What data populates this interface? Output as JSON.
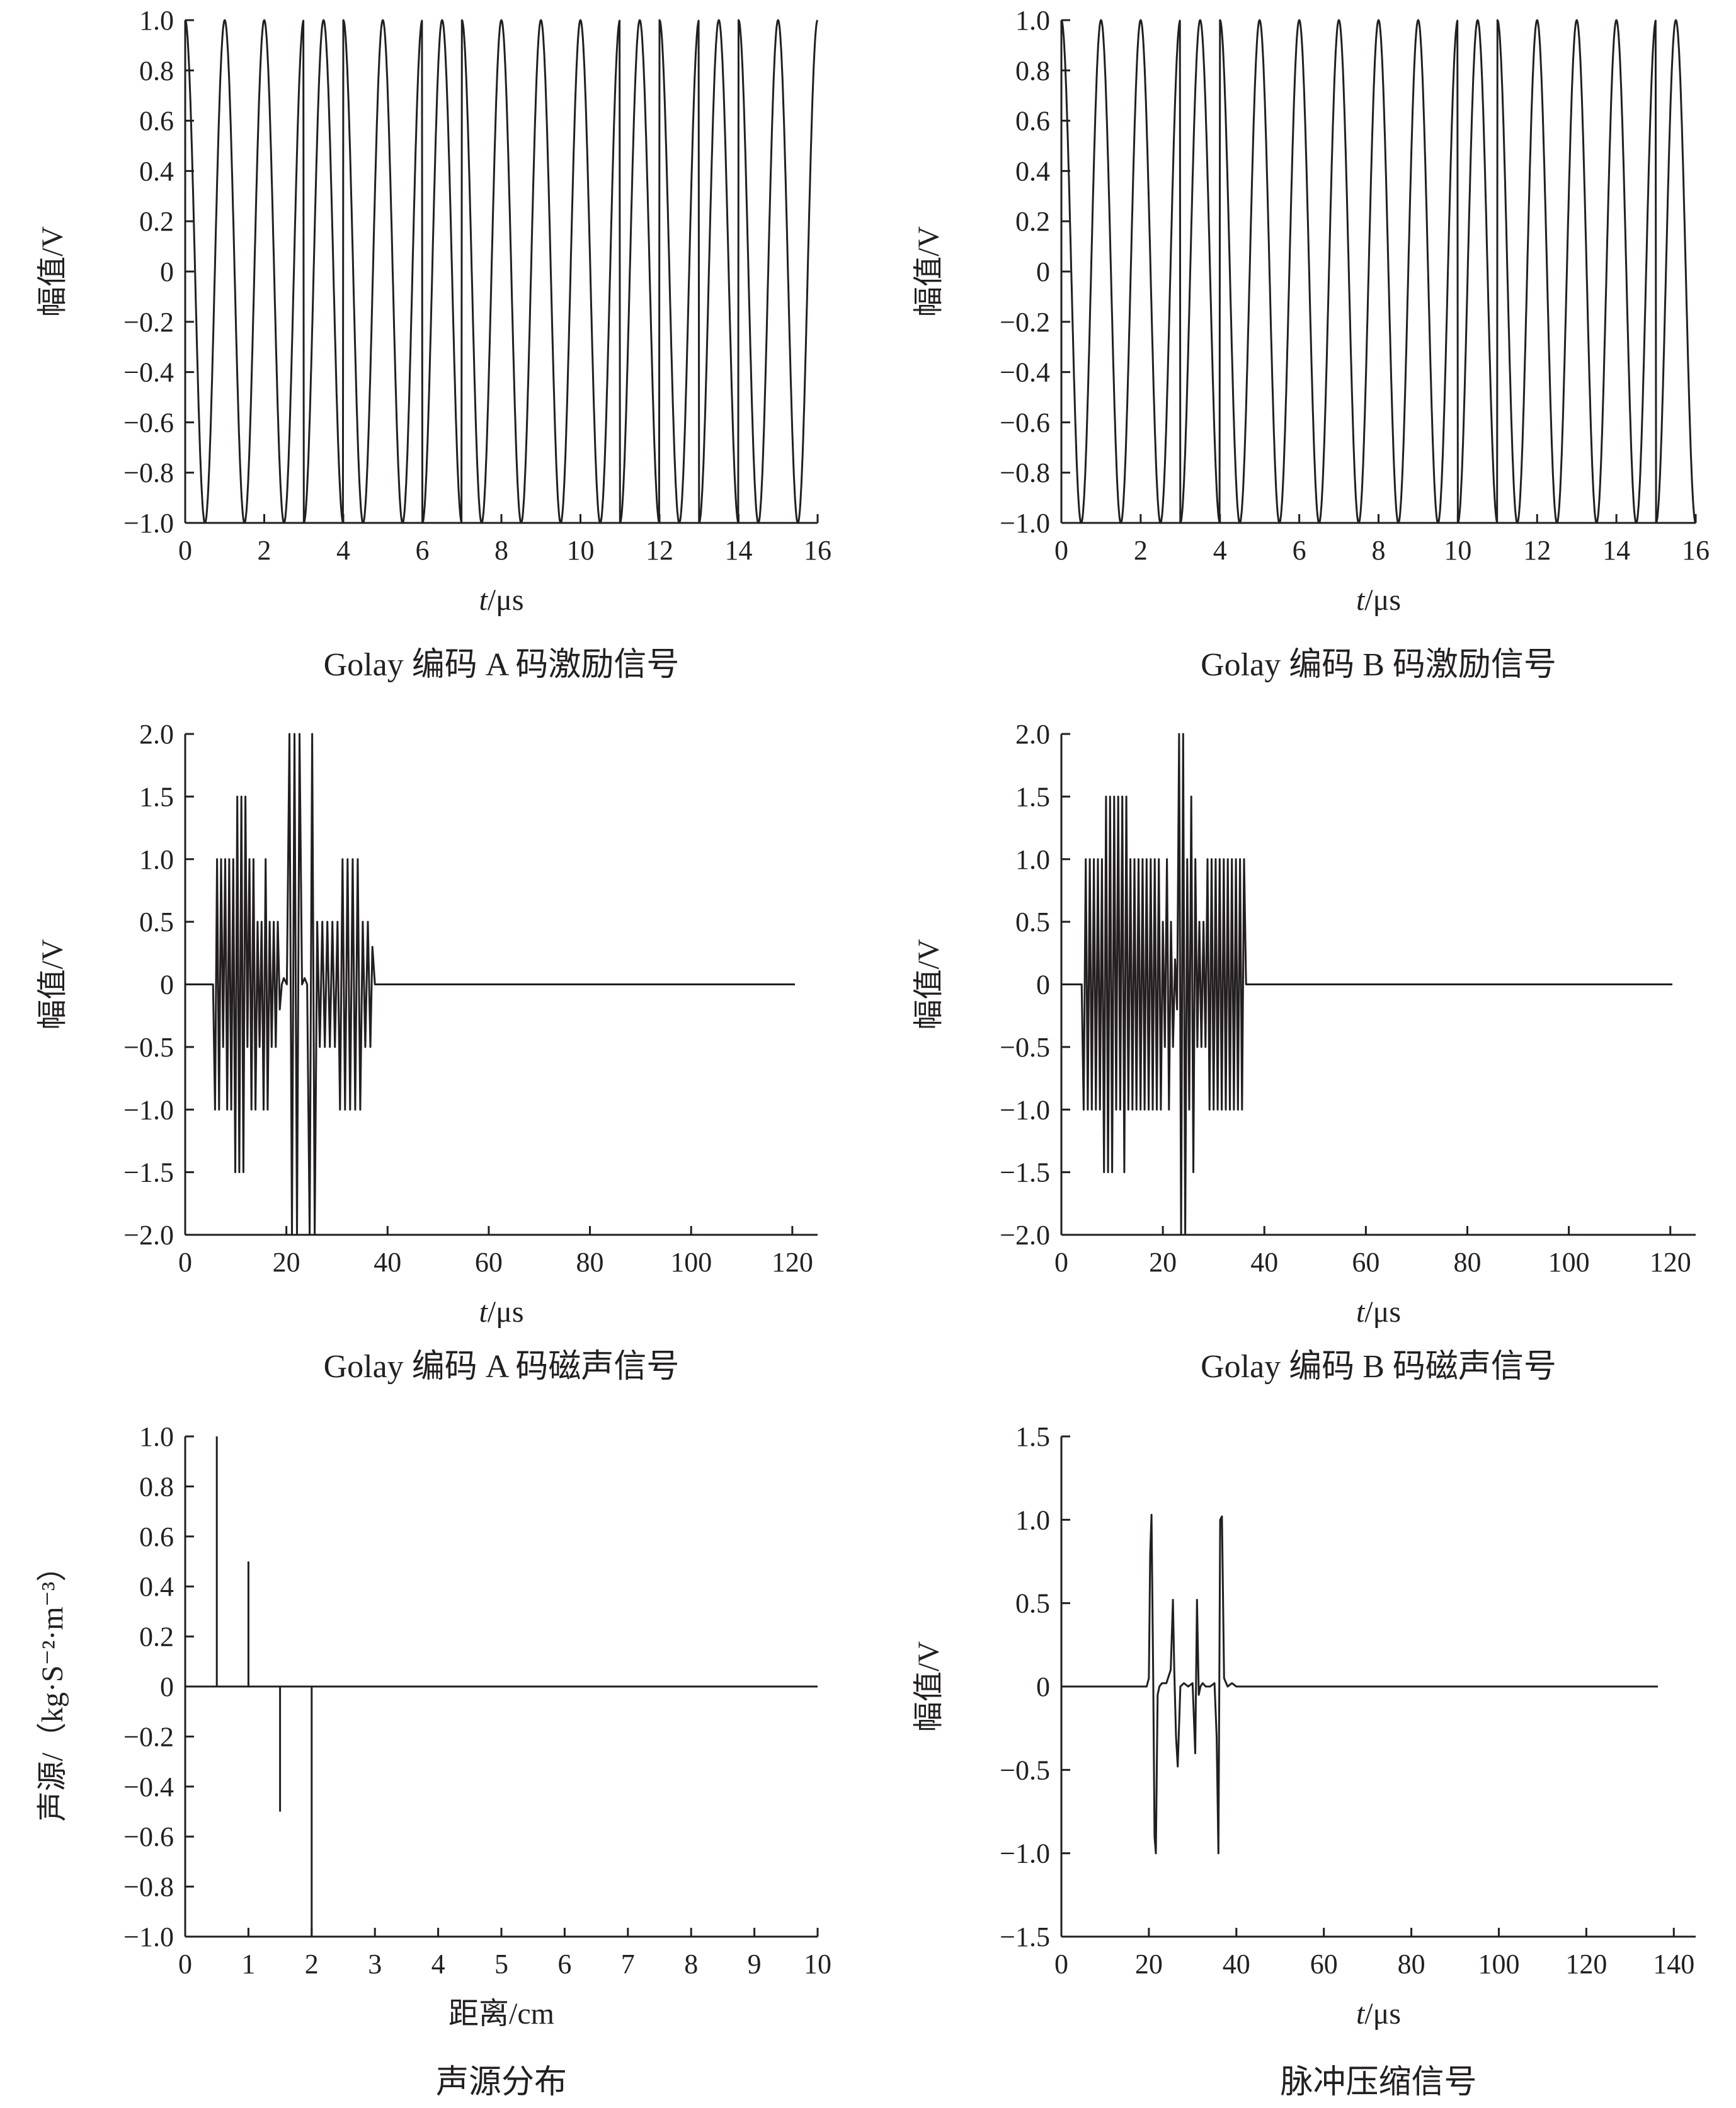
{
  "figure": {
    "colors": {
      "ink": "#231f20",
      "background": "#ffffff"
    }
  },
  "chart_data": [
    {
      "id": "golay-a-excitation",
      "type": "line",
      "caption": "Golay 编码 A 码激励信号",
      "xlabel": "t/μs",
      "ylabel": "幅值/V",
      "xlim": [
        0,
        16
      ],
      "ylim": [
        -1.0,
        1.0
      ],
      "xticks": [
        0,
        2,
        4,
        6,
        8,
        10,
        12,
        14,
        16
      ],
      "yticks": [
        1.0,
        0.8,
        0.6,
        0.4,
        0.2,
        0,
        -0.2,
        -0.4,
        -0.6,
        -0.8,
        -1.0
      ],
      "ytick_labels": [
        "1.0",
        "0.8",
        "0.6",
        "0.4",
        "0.2",
        "0",
        "−0.2",
        "−0.4",
        "−0.6",
        "−0.8",
        "−1.0"
      ],
      "carrier_period_us": 1.0,
      "code_signs": [
        1,
        1,
        1,
        -1,
        1,
        1,
        -1,
        1,
        1,
        1,
        1,
        -1,
        1,
        -1,
        1,
        1
      ],
      "grid": false
    },
    {
      "id": "golay-b-excitation",
      "type": "line",
      "caption": "Golay 编码 B 码激励信号",
      "xlabel": "t/μs",
      "ylabel": "幅值/V",
      "xlim": [
        0,
        16
      ],
      "ylim": [
        -1.0,
        1.0
      ],
      "xticks": [
        0,
        2,
        4,
        6,
        8,
        10,
        12,
        14,
        16
      ],
      "yticks": [
        1.0,
        0.8,
        0.6,
        0.4,
        0.2,
        0,
        -0.2,
        -0.4,
        -0.6,
        -0.8,
        -1.0
      ],
      "ytick_labels": [
        "1.0",
        "0.8",
        "0.6",
        "0.4",
        "0.2",
        "0",
        "−0.2",
        "−0.4",
        "−0.6",
        "−0.8",
        "−1.0"
      ],
      "carrier_period_us": 1.0,
      "code_signs": [
        1,
        1,
        1,
        -1,
        1,
        1,
        1,
        1,
        1,
        1,
        -1,
        1,
        1,
        1,
        1,
        -1
      ],
      "grid": false
    },
    {
      "id": "golay-a-mag-acoustic",
      "type": "line",
      "caption": "Golay 编码 A 码磁声信号",
      "xlabel": "t/μs",
      "ylabel": "幅值/V",
      "xlim": [
        0,
        125
      ],
      "ylim": [
        -2.0,
        2.0
      ],
      "xticks": [
        0,
        20,
        40,
        60,
        80,
        100,
        120
      ],
      "yticks": [
        2.0,
        1.5,
        1.0,
        0.5,
        0,
        -0.5,
        -1.0,
        -1.5,
        -2.0
      ],
      "ytick_labels": [
        "2.0",
        "1.5",
        "1.0",
        "0.5",
        "0",
        "−0.5",
        "−1.0",
        "−1.5",
        "−2.0"
      ],
      "x": [
        0,
        5.5,
        5.9,
        6.3,
        6.7,
        7.1,
        7.5,
        7.9,
        8.3,
        8.7,
        9.1,
        9.5,
        9.9,
        10.3,
        10.7,
        11.1,
        11.5,
        11.9,
        12.3,
        12.7,
        13.1,
        13.5,
        13.9,
        14.3,
        14.7,
        15.1,
        15.5,
        15.9,
        16.3,
        16.7,
        17.1,
        17.5,
        17.9,
        18.3,
        18.7,
        19.1,
        19.5,
        20.1,
        20.6,
        21.1,
        21.6,
        22.1,
        22.6,
        23.1,
        23.6,
        24.1,
        24.6,
        25.1,
        25.6,
        26.1,
        26.6,
        27.1,
        27.6,
        28.1,
        28.6,
        29.1,
        29.6,
        30.1,
        30.6,
        31.1,
        31.6,
        32.1,
        32.6,
        33.1,
        33.6,
        34.1,
        34.6,
        35.1,
        35.6,
        36.1,
        36.6,
        37.0,
        37.5,
        60,
        118
      ],
      "y": [
        0,
        0,
        -1.0,
        1.0,
        -1.0,
        1.0,
        -0.5,
        1.0,
        -1.0,
        1.0,
        -1.0,
        1.0,
        -1.5,
        1.5,
        -1.5,
        1.5,
        -1.5,
        1.5,
        -0.5,
        1.0,
        -1.0,
        1.0,
        -1.0,
        0.5,
        -0.5,
        0.5,
        -1.0,
        1.0,
        -1.0,
        0.5,
        -0.5,
        0.5,
        -0.5,
        0.5,
        -0.2,
        0,
        0.05,
        0,
        2.0,
        -2.0,
        2.0,
        -2.0,
        2.0,
        0,
        0.05,
        0,
        -2.0,
        2.0,
        -2.0,
        0.5,
        -0.5,
        0.5,
        -0.5,
        0.5,
        -0.5,
        0.5,
        -0.5,
        0.5,
        -1.0,
        1.0,
        -1.0,
        1.0,
        -1.0,
        1.0,
        -1.0,
        1.0,
        -1.0,
        0.5,
        -0.5,
        0.5,
        -0.5,
        0.3,
        0,
        0,
        0
      ],
      "grid": false
    },
    {
      "id": "golay-b-mag-acoustic",
      "type": "line",
      "caption": "Golay 编码 B 码磁声信号",
      "xlabel": "t/μs",
      "ylabel": "幅值/V",
      "xlim": [
        0,
        125
      ],
      "ylim": [
        -2.0,
        2.0
      ],
      "xticks": [
        0,
        20,
        40,
        60,
        80,
        100,
        120
      ],
      "yticks": [
        2.0,
        1.5,
        1.0,
        0.5,
        0,
        -0.5,
        -1.0,
        -1.5,
        -2.0
      ],
      "ytick_labels": [
        "2.0",
        "1.5",
        "1.0",
        "0.5",
        "0",
        "−0.5",
        "−1.0",
        "−1.5",
        "−2.0"
      ],
      "x": [
        0,
        4.0,
        4.4,
        4.8,
        5.2,
        5.6,
        6.0,
        6.4,
        6.8,
        7.2,
        7.6,
        8.0,
        8.4,
        8.8,
        9.2,
        9.6,
        10.0,
        10.4,
        10.8,
        11.2,
        11.6,
        12.0,
        12.4,
        12.8,
        13.2,
        13.6,
        14.0,
        14.4,
        14.8,
        15.2,
        15.6,
        16.0,
        16.4,
        16.8,
        17.2,
        17.6,
        18.0,
        18.4,
        18.8,
        19.2,
        19.6,
        20.0,
        20.4,
        20.8,
        21.2,
        21.6,
        22.0,
        22.4,
        22.8,
        23.2,
        23.6,
        24.0,
        24.4,
        24.8,
        25.2,
        25.6,
        26.0,
        26.4,
        26.8,
        27.2,
        27.6,
        28.0,
        28.4,
        28.8,
        29.2,
        29.6,
        30.0,
        30.4,
        30.8,
        31.2,
        31.6,
        32.0,
        32.4,
        32.8,
        33.2,
        33.6,
        34.0,
        34.4,
        34.8,
        35.2,
        35.6,
        36.0,
        36.4,
        60,
        118
      ],
      "y": [
        0,
        0,
        -1.0,
        1.0,
        -1.0,
        1.0,
        -1.0,
        1.0,
        -1.0,
        1.0,
        -1.0,
        1.0,
        -1.5,
        1.5,
        -1.5,
        1.5,
        -1.5,
        1.5,
        -1.0,
        1.5,
        -1.0,
        1.5,
        -1.5,
        1.5,
        -1.0,
        1.0,
        -1.0,
        1.0,
        -1.0,
        1.0,
        -1.0,
        1.0,
        -1.0,
        1.0,
        -1.0,
        1.0,
        -1.0,
        1.0,
        -1.0,
        1.0,
        -1.0,
        0.5,
        -0.5,
        1.0,
        -1.0,
        0.5,
        -0.5,
        0.2,
        -0.2,
        2.0,
        -2.0,
        2.0,
        -2.0,
        1.0,
        -1.0,
        1.5,
        -1.5,
        1.0,
        -0.5,
        0.5,
        -0.5,
        0.5,
        -0.5,
        1.0,
        -1.0,
        1.0,
        -1.0,
        1.0,
        -1.0,
        1.0,
        -1.0,
        1.0,
        -1.0,
        1.0,
        -1.0,
        1.0,
        -1.0,
        1.0,
        -1.0,
        1.0,
        -1.0,
        1.0,
        0,
        0,
        0
      ],
      "grid": false
    },
    {
      "id": "sound-source-distribution",
      "type": "stem",
      "caption": "声源分布",
      "xlabel": "距离/cm",
      "ylabel": "声源/（kg·S⁻²·m⁻³）",
      "xlim": [
        0,
        10
      ],
      "ylim": [
        -1.0,
        1.0
      ],
      "xticks": [
        0,
        1,
        2,
        3,
        4,
        5,
        6,
        7,
        8,
        9,
        10
      ],
      "yticks": [
        1.0,
        0.8,
        0.6,
        0.4,
        0.2,
        0,
        -0.2,
        -0.4,
        -0.6,
        -0.8,
        -1.0
      ],
      "ytick_labels": [
        "1.0",
        "0.8",
        "0.6",
        "0.4",
        "0.2",
        "0",
        "−0.2",
        "−0.4",
        "−0.6",
        "−0.8",
        "−1.0"
      ],
      "x": [
        0.5,
        1.0,
        1.5,
        2.0
      ],
      "y": [
        1.0,
        0.5,
        -0.5,
        -1.0
      ],
      "grid": false
    },
    {
      "id": "pulse-compression",
      "type": "line",
      "caption": "脉冲压缩信号",
      "xlabel": "t/μs",
      "ylabel": "幅值/V",
      "xlim": [
        0,
        145
      ],
      "ylim": [
        -1.5,
        1.5
      ],
      "xticks": [
        0,
        20,
        40,
        60,
        80,
        100,
        120,
        140
      ],
      "yticks": [
        1.5,
        1.0,
        0.5,
        0,
        -0.5,
        -1.0,
        -1.5
      ],
      "ytick_labels": [
        "1.5",
        "1.0",
        "0.5",
        "0",
        "−0.5",
        "−1.0",
        "−1.5"
      ],
      "x": [
        0,
        19.5,
        20.0,
        20.3,
        20.6,
        21.0,
        21.3,
        21.6,
        22.0,
        22.4,
        23.0,
        24.0,
        25.0,
        25.5,
        25.8,
        26.2,
        26.6,
        27.2,
        28.0,
        29.0,
        30.0,
        30.6,
        31.0,
        31.4,
        31.8,
        32.3,
        33.0,
        34.0,
        35.0,
        35.5,
        35.9,
        36.3,
        36.7,
        37.2,
        38.0,
        39.0,
        40.0,
        60,
        135
      ],
      "y": [
        0,
        0,
        0.05,
        0.8,
        1.03,
        0.05,
        -0.9,
        -1.0,
        -0.05,
        0,
        0.02,
        0.02,
        0.1,
        0.52,
        0.1,
        -0.3,
        -0.48,
        0,
        0.02,
        0,
        0.02,
        -0.4,
        0.52,
        -0.05,
        0,
        0.02,
        0,
        0,
        0.02,
        -0.3,
        -1.0,
        1.0,
        1.02,
        0.05,
        0,
        0.02,
        0,
        0,
        0
      ],
      "grid": false
    }
  ]
}
